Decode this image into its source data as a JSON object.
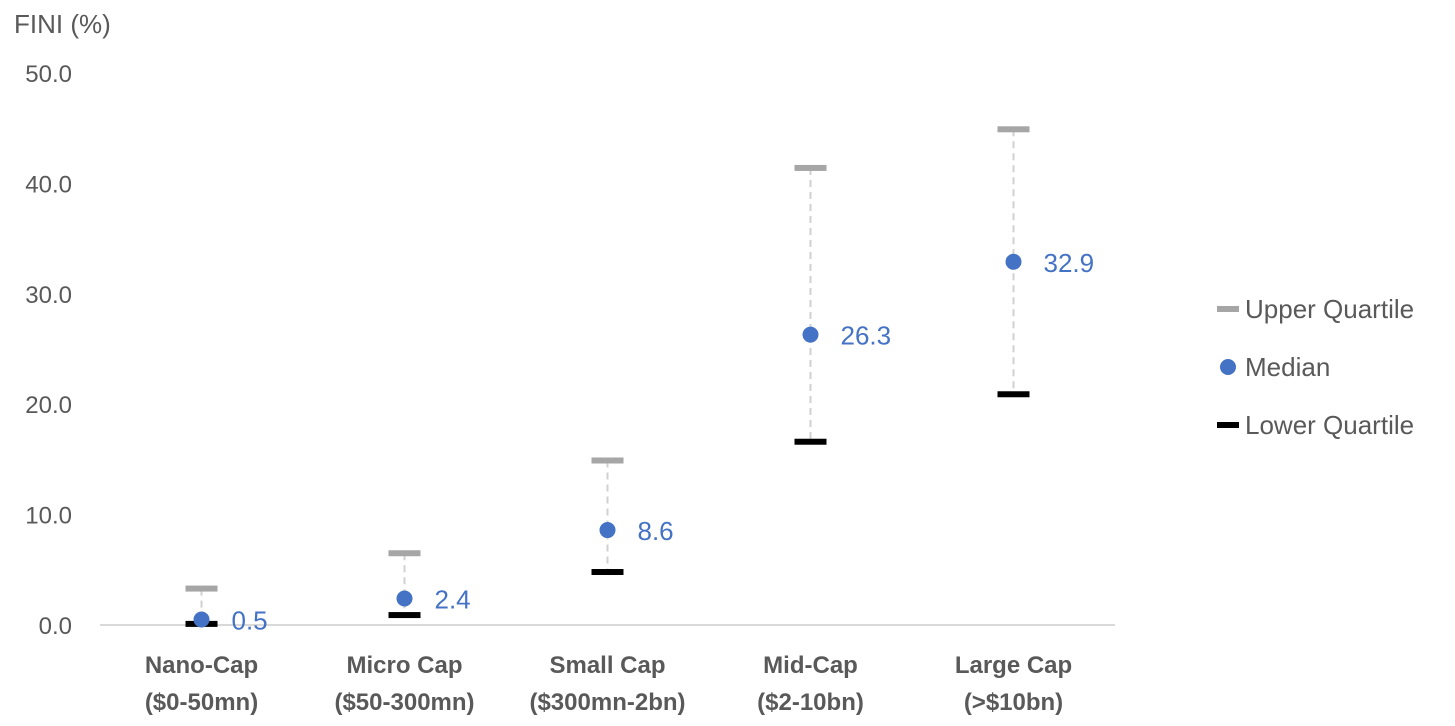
{
  "chart_data": {
    "type": "scatter",
    "title": "",
    "ylabel": "FINI (%)",
    "xlabel": "",
    "ylim": [
      0,
      50
    ],
    "yticks": [
      "0.0",
      "10.0",
      "20.0",
      "30.0",
      "40.0",
      "50.0"
    ],
    "grid": false,
    "legend_position": "right",
    "categories": [
      [
        "Nano-Cap",
        "($0-50mn)"
      ],
      [
        "Micro Cap",
        "($50-300mn)"
      ],
      [
        "Small Cap",
        "($300mn-2bn)"
      ],
      [
        "Mid-Cap",
        "($2-10bn)"
      ],
      [
        "Large Cap",
        "(>$10bn)"
      ]
    ],
    "series": [
      {
        "name": "Upper Quartile",
        "values": [
          3.3,
          6.5,
          14.9,
          41.4,
          44.9
        ],
        "color": "#a6a6a6",
        "marker": "dash"
      },
      {
        "name": "Median",
        "values": [
          0.5,
          2.4,
          8.6,
          26.3,
          32.9
        ],
        "color": "#4472c4",
        "marker": "circle",
        "labels": [
          "0.5",
          "2.4",
          "8.6",
          "26.3",
          "32.9"
        ]
      },
      {
        "name": "Lower Quartile",
        "values": [
          0.1,
          0.9,
          4.8,
          16.6,
          20.9
        ],
        "color": "#000000",
        "marker": "dash"
      }
    ],
    "connector_color": "#d0d0d0"
  }
}
